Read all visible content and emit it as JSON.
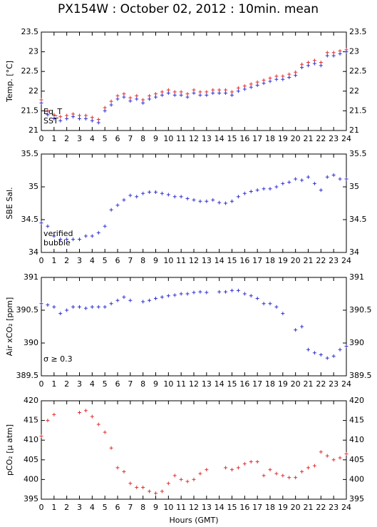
{
  "title": "PX154W : October 02, 2012 : 10min. mean",
  "xlabel": "Hours (GMT)",
  "chart_data": [
    {
      "type": "scatter",
      "ylabel": "Temp. [°C]",
      "xlim": [
        0,
        24
      ],
      "ylim": [
        21,
        23.5
      ],
      "xticks": [
        0,
        1,
        2,
        3,
        4,
        5,
        6,
        7,
        8,
        9,
        10,
        11,
        12,
        13,
        14,
        15,
        16,
        17,
        18,
        19,
        20,
        21,
        22,
        23,
        24
      ],
      "yticks": [
        21,
        21.5,
        22,
        22.5,
        23,
        23.5
      ],
      "x": [
        0,
        0.5,
        1,
        1.5,
        2,
        2.5,
        3,
        3.5,
        4,
        4.5,
        5,
        5.5,
        6,
        6.5,
        7,
        7.5,
        8,
        8.5,
        9,
        9.5,
        10,
        10.5,
        11,
        11.5,
        12,
        12.5,
        13,
        13.5,
        14,
        14.5,
        15,
        15.5,
        16,
        16.5,
        17,
        17.5,
        18,
        18.5,
        19,
        19.5,
        20,
        20.5,
        21,
        21.5,
        22,
        22.5,
        23,
        23.5,
        24
      ],
      "series": [
        {
          "name": "Eq_T",
          "color": "#e03030",
          "values": [
            21.78,
            21.5,
            21.4,
            21.35,
            21.38,
            21.42,
            21.38,
            21.38,
            21.33,
            21.28,
            21.58,
            21.74,
            21.88,
            21.93,
            21.83,
            21.88,
            21.78,
            21.88,
            21.93,
            21.98,
            22.03,
            21.98,
            21.98,
            21.93,
            22.03,
            21.98,
            21.98,
            22.03,
            22.03,
            22.03,
            21.98,
            22.08,
            22.13,
            22.18,
            22.23,
            22.28,
            22.33,
            22.38,
            22.38,
            22.43,
            22.48,
            22.68,
            22.73,
            22.78,
            22.73,
            22.98,
            22.98,
            23.02,
            23.05
          ]
        },
        {
          "name": "SST",
          "color": "#3030d0",
          "values": [
            21.7,
            21.4,
            21.3,
            21.25,
            21.3,
            21.35,
            21.3,
            21.3,
            21.25,
            21.2,
            21.5,
            21.65,
            21.8,
            21.85,
            21.75,
            21.8,
            21.7,
            21.8,
            21.85,
            21.9,
            21.95,
            21.9,
            21.9,
            21.85,
            21.95,
            21.9,
            21.9,
            21.95,
            21.95,
            21.95,
            21.9,
            22.0,
            22.05,
            22.1,
            22.15,
            22.2,
            22.25,
            22.3,
            22.3,
            22.35,
            22.4,
            22.6,
            22.65,
            22.7,
            22.65,
            22.9,
            22.9,
            22.95,
            23.0
          ]
        }
      ]
    },
    {
      "type": "scatter",
      "ylabel": "SBE Sal.",
      "xlim": [
        0,
        24
      ],
      "ylim": [
        34,
        35.5
      ],
      "xticks": [
        0,
        1,
        2,
        3,
        4,
        5,
        6,
        7,
        8,
        9,
        10,
        11,
        12,
        13,
        14,
        15,
        16,
        17,
        18,
        19,
        20,
        21,
        22,
        23,
        24
      ],
      "yticks": [
        34,
        34.5,
        35,
        35.5
      ],
      "x": [
        0,
        0.5,
        1,
        1.5,
        2,
        2.5,
        3,
        3.5,
        4,
        4.5,
        5,
        5.5,
        6,
        6.5,
        7,
        7.5,
        8,
        8.5,
        9,
        9.5,
        10,
        10.5,
        11,
        11.5,
        12,
        12.5,
        13,
        13.5,
        14,
        14.5,
        15,
        15.5,
        16,
        16.5,
        17,
        17.5,
        18,
        18.5,
        19,
        19.5,
        20,
        20.5,
        21,
        21.5,
        22,
        22.5,
        23,
        23.5,
        24
      ],
      "series": [
        {
          "name": "verified",
          "color": "#3030d0",
          "values": [
            34.45,
            34.4,
            34.25,
            34.2,
            34.2,
            34.2,
            34.2,
            34.25,
            34.25,
            34.3,
            34.4,
            34.65,
            34.72,
            34.8,
            34.87,
            34.85,
            34.9,
            34.92,
            34.92,
            34.9,
            34.88,
            34.85,
            34.85,
            34.82,
            34.8,
            34.78,
            34.78,
            34.8,
            34.76,
            34.75,
            34.78,
            34.85,
            34.9,
            34.93,
            34.95,
            34.97,
            34.97,
            35.0,
            35.05,
            35.07,
            35.12,
            35.1,
            35.15,
            35.05,
            34.95,
            35.15,
            35.18,
            35.12,
            35.12
          ]
        },
        {
          "name": "bubble",
          "color": "#d030d0",
          "values": [
            null,
            null,
            null,
            null,
            null,
            null,
            null,
            null,
            null,
            null,
            null,
            null,
            null,
            null,
            null,
            null,
            null,
            null,
            null,
            null,
            null,
            null,
            null,
            null,
            null,
            null,
            null,
            null,
            null,
            null,
            null,
            null,
            null,
            null,
            null,
            null,
            null,
            null,
            null,
            null,
            null,
            null,
            null,
            null,
            null,
            null,
            null,
            null,
            null
          ]
        }
      ]
    },
    {
      "type": "scatter",
      "ylabel": "Air xCO₂ [ppm]",
      "xlim": [
        0,
        24
      ],
      "ylim": [
        389.5,
        391
      ],
      "xticks": [
        0,
        1,
        2,
        3,
        4,
        5,
        6,
        7,
        8,
        9,
        10,
        11,
        12,
        13,
        14,
        15,
        16,
        17,
        18,
        19,
        20,
        21,
        22,
        23,
        24
      ],
      "yticks": [
        389.5,
        390,
        390.5,
        391
      ],
      "annotation": "σ ≥ 0.3",
      "annotation_color": "#d030d0",
      "x": [
        0,
        0.5,
        1,
        1.5,
        2,
        2.5,
        3,
        3.5,
        4,
        4.5,
        5,
        5.5,
        6,
        6.5,
        7,
        7.5,
        8,
        8.5,
        9,
        9.5,
        10,
        10.5,
        11,
        11.5,
        12,
        12.5,
        13,
        13.5,
        14,
        14.5,
        15,
        15.5,
        16,
        16.5,
        17,
        17.5,
        18,
        18.5,
        19,
        19.5,
        20,
        20.5,
        21,
        21.5,
        22,
        22.5,
        23,
        23.5,
        24
      ],
      "series": [
        {
          "name": "Air xCO₂",
          "color": "#3030d0",
          "values": [
            390.6,
            390.58,
            390.55,
            390.45,
            390.5,
            390.55,
            390.55,
            390.53,
            390.55,
            390.55,
            390.55,
            390.6,
            390.65,
            390.7,
            390.65,
            null,
            390.63,
            390.65,
            390.68,
            390.7,
            390.72,
            390.73,
            390.75,
            390.75,
            390.77,
            390.78,
            390.77,
            null,
            390.78,
            390.78,
            390.8,
            390.8,
            390.75,
            390.72,
            390.68,
            390.6,
            390.6,
            390.55,
            390.45,
            null,
            390.2,
            390.25,
            389.9,
            389.85,
            389.82,
            389.77,
            389.8,
            389.9,
            389.95
          ]
        }
      ]
    },
    {
      "type": "scatter",
      "ylabel": "pCO₂ [μ atm]",
      "xlim": [
        0,
        24
      ],
      "ylim": [
        395,
        420
      ],
      "xticks": [
        0,
        1,
        2,
        3,
        4,
        5,
        6,
        7,
        8,
        9,
        10,
        11,
        12,
        13,
        14,
        15,
        16,
        17,
        18,
        19,
        20,
        21,
        22,
        23,
        24
      ],
      "yticks": [
        395,
        400,
        405,
        410,
        415,
        420
      ],
      "x": [
        0,
        0.5,
        1,
        1.5,
        2,
        2.5,
        3,
        3.5,
        4,
        4.5,
        5,
        5.5,
        6,
        6.5,
        7,
        7.5,
        8,
        8.5,
        9,
        9.5,
        10,
        10.5,
        11,
        11.5,
        12,
        12.5,
        13,
        13.5,
        14,
        14.5,
        15,
        15.5,
        16,
        16.5,
        17,
        17.5,
        18,
        18.5,
        19,
        19.5,
        20,
        20.5,
        21,
        21.5,
        22,
        22.5,
        23,
        23.5,
        24
      ],
      "series": [
        {
          "name": "pCO₂",
          "color": "#e03030",
          "values": [
            411,
            415,
            416.5,
            null,
            null,
            null,
            417,
            417.5,
            416,
            414,
            412,
            408,
            403,
            402,
            399,
            398,
            398,
            397,
            396.5,
            397,
            399,
            401,
            400,
            399.5,
            400,
            401.5,
            402.5,
            null,
            null,
            403,
            402.5,
            403,
            404,
            404.5,
            404.5,
            401,
            402.5,
            401.5,
            401,
            400.5,
            400.5,
            402,
            403,
            403.5,
            407,
            406,
            405,
            405.5,
            406.5
          ]
        }
      ]
    }
  ]
}
